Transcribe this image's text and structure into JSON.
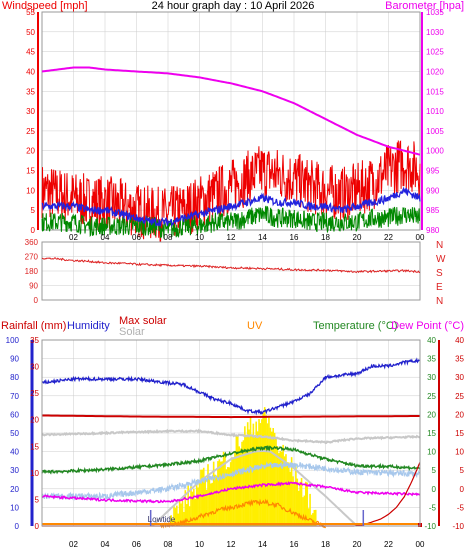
{
  "title": "24 hour graph day : 10 April 2026",
  "colors": {
    "wind": "#ee0000",
    "gust_avg": "#2222dd",
    "wind_avg": "#008800",
    "baro": "#ee00ee",
    "dir": "#dd2222",
    "humidity": "#2222cc",
    "rain": "#cc0000",
    "temp": "#228822",
    "dew": "#ee00ee",
    "solar": "#b0b0b0",
    "maxsolar": "#c8c8c8",
    "uv": "#ff8800",
    "sun": "#ffee00",
    "grid": "#cccccc"
  },
  "chart_data": [
    {
      "type": "line",
      "title": "24 hour graph day : 10 April 2026",
      "x_ticks": [
        "02",
        "04",
        "06",
        "08",
        "10",
        "12",
        "14",
        "16",
        "18",
        "20",
        "22",
        "00"
      ],
      "left_axis": {
        "label": "Windspeed [mph]",
        "range": [
          0,
          55
        ],
        "ticks": [
          "0",
          "5",
          "10",
          "15",
          "20",
          "25",
          "30",
          "35",
          "40",
          "45",
          "50",
          "55"
        ]
      },
      "right_axis": {
        "label": "Barometer [hpa]",
        "range": [
          980,
          1035
        ],
        "ticks": [
          "980",
          "985",
          "990",
          "995",
          "1000",
          "1005",
          "1010",
          "1015",
          "1020",
          "1025",
          "1030",
          "1035"
        ]
      },
      "series": [
        {
          "key": "baro",
          "axis": "right",
          "x": [
            0,
            2,
            3,
            4,
            6,
            8,
            10,
            12,
            14,
            16,
            18,
            20,
            22,
            24
          ],
          "values": [
            1020,
            1021,
            1021,
            1020.5,
            1020,
            1019.5,
            1018.5,
            1017,
            1015,
            1012,
            1008,
            1004,
            1001,
            999
          ]
        },
        {
          "key": "wind",
          "axis": "left",
          "x": [
            0,
            1,
            2,
            3,
            4,
            5,
            6,
            7,
            8,
            9,
            10,
            11,
            12,
            13,
            14,
            15,
            16,
            17,
            18,
            19,
            20,
            21,
            22,
            23,
            24
          ],
          "values": [
            10,
            9,
            8,
            7,
            7,
            6,
            5,
            4,
            4,
            5,
            7,
            9,
            11,
            13,
            15,
            14,
            13,
            11,
            10,
            9,
            10,
            12,
            15,
            17,
            15
          ]
        },
        {
          "key": "gust_avg",
          "axis": "left",
          "x": [
            0,
            1,
            2,
            3,
            4,
            5,
            6,
            7,
            8,
            9,
            10,
            11,
            12,
            13,
            14,
            15,
            16,
            17,
            18,
            19,
            20,
            21,
            22,
            23,
            24
          ],
          "values": [
            6,
            6,
            6,
            5,
            5,
            4,
            3,
            2,
            2,
            3,
            4,
            5,
            6,
            7,
            8,
            7,
            7,
            6,
            6,
            5,
            6,
            7,
            8,
            10,
            8
          ]
        },
        {
          "key": "wind_avg",
          "axis": "left",
          "x": [
            0,
            1,
            2,
            3,
            4,
            5,
            6,
            7,
            8,
            9,
            10,
            11,
            12,
            13,
            14,
            15,
            16,
            17,
            18,
            19,
            20,
            21,
            22,
            23,
            24
          ],
          "values": [
            2,
            2,
            2,
            1,
            1,
            1,
            1,
            1,
            0,
            1,
            1,
            2,
            2,
            3,
            4,
            3,
            3,
            2,
            2,
            2,
            2,
            3,
            3,
            4,
            3
          ]
        }
      ]
    },
    {
      "type": "line",
      "y_ticks": [
        "0",
        "90",
        "180",
        "270",
        "360"
      ],
      "y_range": [
        0,
        360
      ],
      "compass": [
        "N",
        "W",
        "S",
        "E",
        "N"
      ],
      "series": [
        {
          "key": "dir",
          "x": [
            0,
            1,
            2,
            3,
            4,
            5,
            6,
            7,
            8,
            9,
            10,
            11,
            12,
            13,
            14,
            15,
            16,
            17,
            18,
            19,
            20,
            21,
            22,
            23,
            24
          ],
          "values": [
            260,
            255,
            245,
            240,
            230,
            228,
            222,
            218,
            215,
            212,
            210,
            205,
            200,
            198,
            195,
            192,
            188,
            186,
            185,
            180,
            175,
            178,
            180,
            182,
            176
          ]
        }
      ]
    },
    {
      "type": "line",
      "x_ticks": [
        "02",
        "04",
        "06",
        "08",
        "10",
        "12",
        "14",
        "16",
        "18",
        "20",
        "22",
        "00"
      ],
      "labels": {
        "rainfall": "Rainfall (mm)",
        "humidity": "Humidity",
        "max_solar": "Max solar",
        "solar": "Solar",
        "uv": "UV",
        "temperature": "Temperature (°C)",
        "dew": "Dew Point (°C)",
        "lowtide": "Lowtide"
      },
      "humidity_axis": {
        "range": [
          0,
          100
        ],
        "ticks": [
          "0",
          "10",
          "20",
          "30",
          "40",
          "50",
          "60",
          "70",
          "80",
          "90",
          "100"
        ]
      },
      "rain_axis": {
        "range": [
          0,
          35
        ],
        "ticks": [
          "0",
          "5",
          "10",
          "15",
          "20",
          "25",
          "30",
          "35"
        ]
      },
      "temp_axis": {
        "range": [
          -10,
          40
        ],
        "ticks": [
          "-10",
          "-5",
          "0",
          "5",
          "10",
          "15",
          "20",
          "25",
          "30",
          "35",
          "40"
        ]
      },
      "series": [
        {
          "key": "humidity",
          "x": [
            0,
            2,
            4,
            6,
            8,
            9,
            10,
            11,
            12,
            13,
            14,
            15,
            16,
            17,
            18,
            20,
            21,
            22,
            23,
            24
          ],
          "values": [
            77,
            79,
            79,
            79,
            77,
            76,
            72,
            68,
            66,
            62,
            61,
            64,
            67,
            71,
            80,
            82,
            86,
            86,
            88,
            89
          ]
        },
        {
          "key": "rain_line",
          "x": [
            0,
            6,
            12,
            18,
            24
          ],
          "values": [
            20.8,
            20.6,
            20.5,
            20.6,
            20.7
          ]
        },
        {
          "key": "maxsolar",
          "x": [
            0,
            4,
            8,
            10,
            12,
            14,
            16,
            18,
            20,
            24
          ],
          "values": [
            49,
            50,
            51,
            51,
            49,
            48,
            46,
            45,
            47,
            48
          ]
        },
        {
          "key": "temp",
          "x": [
            0,
            2,
            4,
            6,
            8,
            10,
            12,
            14,
            15,
            16,
            18,
            20,
            22,
            24
          ],
          "values": [
            4.5,
            4.8,
            5.2,
            5.8,
            6.5,
            7.5,
            9.5,
            11,
            11,
            10.5,
            8,
            6.2,
            6,
            5.5
          ]
        },
        {
          "key": "solar",
          "x": [
            0,
            4,
            6,
            8,
            10,
            12,
            14,
            16,
            18,
            20,
            24
          ],
          "values": [
            -2,
            -2,
            -1,
            0,
            2,
            4,
            6,
            6.5,
            5.5,
            4.5,
            4
          ]
        },
        {
          "key": "dew",
          "x": [
            0,
            4,
            8,
            10,
            12,
            14,
            16,
            18,
            20,
            24
          ],
          "values": [
            -2,
            -3,
            -3.5,
            -2,
            0,
            1,
            1.5,
            0.5,
            -1,
            -1.5
          ]
        },
        {
          "key": "uv_curve",
          "x": [
            7.5,
            9,
            10,
            11,
            12,
            13,
            14,
            15,
            16,
            17,
            18
          ],
          "values": [
            -10,
            -9,
            -7.5,
            -6,
            -5,
            -4,
            -3.5,
            -4.5,
            -6.5,
            -8.5,
            -10
          ]
        },
        {
          "key": "maxsolar_arc",
          "x": [
            7,
            8,
            10,
            12,
            13.5,
            14,
            14.5,
            16,
            18,
            19.5,
            20
          ],
          "values": [
            -10,
            -6,
            2,
            8,
            10,
            10.2,
            10,
            5.5,
            -2,
            -8,
            -10
          ]
        },
        {
          "key": "rain_cum",
          "x": [
            0,
            19.8,
            20.5,
            21.5,
            22,
            22.5,
            23,
            23.5,
            24
          ],
          "values": [
            0,
            0,
            0.3,
            1.3,
            2.2,
            3.5,
            5.5,
            8.5,
            12
          ]
        },
        {
          "key": "sun",
          "x": [
            8,
            9,
            10,
            11,
            12,
            13,
            13.5,
            14,
            14.5,
            15,
            16,
            17,
            17.5
          ],
          "values": [
            -10,
            -5,
            0,
            4,
            8,
            14,
            16,
            18,
            16,
            10,
            3,
            -4,
            -10
          ]
        }
      ],
      "markers": [
        {
          "label": "Lowtide",
          "x": 6.9
        },
        {
          "label": "",
          "x": 20.4
        }
      ]
    }
  ]
}
